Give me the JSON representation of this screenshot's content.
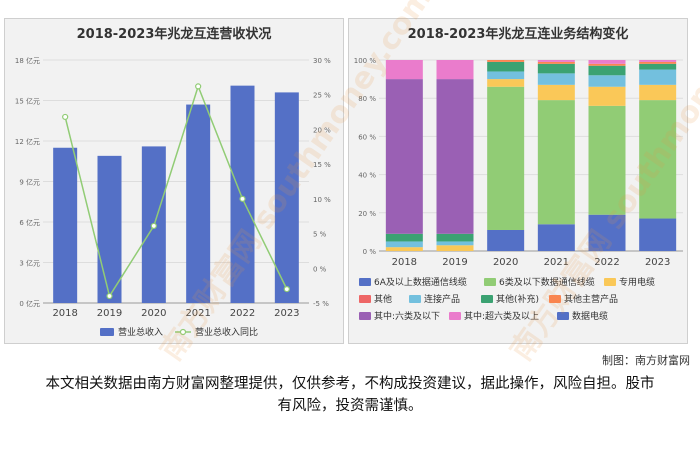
{
  "left": {
    "title": "2018-2023年兆龙互连营收状况",
    "legend_bar": "营业总收入",
    "legend_line": "营业总收入同比",
    "left_ticks": [
      "0 亿元",
      "3 亿元",
      "6 亿元",
      "9 亿元",
      "12 亿元",
      "15 亿元",
      "18 亿元"
    ],
    "right_ticks": [
      "-5 %",
      "0 %",
      "5 %",
      "10 %",
      "15 %",
      "20 %",
      "25 %",
      "30 %"
    ]
  },
  "right": {
    "title": "2018-2023年兆龙互连业务结构变化",
    "y_ticks": [
      "0 %",
      "20 %",
      "40 %",
      "60 %",
      "80 %",
      "100 %"
    ]
  },
  "credit": "制图：南方财富网",
  "disclaimer": "本文相关数据由南方财富网整理提供，仅供参考，不构成投资建议，据此操作，风险自担。股市有风险，投资需谨慎。",
  "watermark_text": "南方财富网 southmoney.com",
  "colors": {
    "bar": "#5470c6",
    "line": "#91cc75"
  },
  "chart_data": [
    {
      "type": "bar",
      "title": "2018-2023年兆龙互连营收状况",
      "categories": [
        "2018",
        "2019",
        "2020",
        "2021",
        "2022",
        "2023"
      ],
      "series": [
        {
          "name": "营业总收入",
          "type": "bar",
          "axis": "left",
          "unit": "亿元",
          "values": [
            11.5,
            10.9,
            11.6,
            14.7,
            16.1,
            15.6
          ]
        },
        {
          "name": "营业总收入同比",
          "type": "line",
          "axis": "right",
          "unit": "%",
          "values": [
            21.8,
            -4.0,
            6.1,
            26.2,
            10.0,
            -3.0
          ]
        }
      ],
      "ylim_left": [
        0,
        18
      ],
      "ylim_right": [
        -5,
        30
      ]
    },
    {
      "type": "bar",
      "stacked": true,
      "title": "2018-2023年兆龙互连业务结构变化",
      "categories": [
        "2018",
        "2019",
        "2020",
        "2021",
        "2022",
        "2023"
      ],
      "ylim": [
        0,
        100
      ],
      "series": [
        {
          "name": "数据电缆",
          "color": "#5470c6",
          "values": [
            0,
            0,
            11,
            14,
            19,
            17
          ]
        },
        {
          "name": "6A及以上数据通信线缆",
          "color": "#5470c6",
          "values": [
            0,
            0,
            0,
            0,
            0,
            0
          ]
        },
        {
          "name": "6类及以下数据通信线缆",
          "color": "#91cc75",
          "values": [
            0,
            0,
            75,
            65,
            57,
            62
          ]
        },
        {
          "name": "专用电缆",
          "color": "#fac858",
          "values": [
            2,
            3,
            4,
            8,
            10,
            8
          ]
        },
        {
          "name": "其他",
          "color": "#ee6666",
          "values": [
            0,
            0,
            0,
            0,
            0,
            0
          ]
        },
        {
          "name": "连接产品",
          "color": "#73c0de",
          "values": [
            3,
            2,
            4,
            6,
            6,
            8
          ]
        },
        {
          "name": "其他(补充)",
          "color": "#3ba272",
          "values": [
            4,
            4,
            5,
            5,
            5,
            3
          ]
        },
        {
          "name": "其他主营产品",
          "color": "#fc8452",
          "values": [
            0,
            0,
            1,
            1,
            1,
            1
          ]
        },
        {
          "name": "其中:六类及以下",
          "color": "#9a60b4",
          "values": [
            81,
            81,
            0,
            0,
            0,
            0
          ]
        },
        {
          "name": "其中:超六类及以上",
          "color": "#ea7ccc",
          "values": [
            10,
            10,
            0,
            1,
            2,
            1
          ]
        }
      ],
      "legend": [
        "6A及以上数据通信线缆",
        "6类及以下数据通信线缆",
        "专用电缆",
        "其他",
        "连接产品",
        "其他(补充)",
        "其他主营产品",
        "其中:六类及以下",
        "其中:超六类及以上",
        "数据电缆"
      ]
    }
  ]
}
